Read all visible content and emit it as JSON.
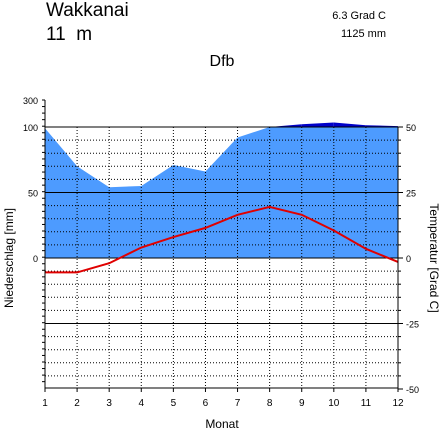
{
  "station": {
    "name": "Wakkanai",
    "elevation": "11  m",
    "mean_temp": "6.3 Grad C",
    "annual_precip": "1125 mm",
    "climate_class": "Dfb"
  },
  "colors": {
    "precip_fill": "#4d9bff",
    "precip_excess": "#0000c8",
    "temperature": "#e00000",
    "grid": "#000000"
  },
  "chart_data": {
    "type": "line",
    "title": "Dfb",
    "xlabel": "Monat",
    "ylabel_left": "Niederschlag [mm]",
    "ylabel_right": "Temperatur [Grad C]",
    "categories": [
      "1",
      "2",
      "3",
      "4",
      "5",
      "6",
      "7",
      "8",
      "9",
      "10",
      "11",
      "12"
    ],
    "left_ticks": [
      "0",
      "50",
      "100",
      "300"
    ],
    "right_ticks": [
      "50",
      "25",
      "0",
      "-25",
      "-50"
    ],
    "xlim": [
      1,
      12
    ],
    "precip_ylim": [
      0,
      100
    ],
    "temp_ylim": [
      -50,
      50
    ],
    "grid": true,
    "series": [
      {
        "key": "precipitation",
        "unit": "mm",
        "values": [
          99,
          70,
          54,
          55,
          71,
          66,
          92,
          100,
          103,
          105,
          102,
          101
        ]
      },
      {
        "key": "temperature",
        "unit": "Grad C",
        "values": [
          -5.5,
          -5.5,
          -2,
          4,
          8,
          11.5,
          16.5,
          19.5,
          16.5,
          10.5,
          3.5,
          -1.5
        ]
      }
    ]
  }
}
